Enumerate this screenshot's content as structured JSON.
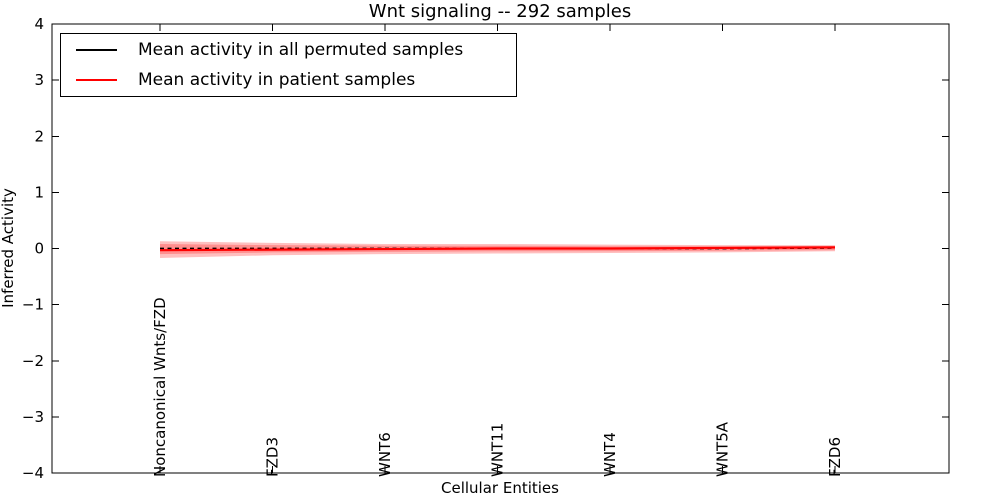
{
  "figure": {
    "title": "Wnt signaling -- 292 samples",
    "xlabel": "Cellular Entities",
    "ylabel": "Inferred Activity"
  },
  "legend": {
    "entries": [
      {
        "label": "Mean activity in all permuted samples",
        "color": "#000000"
      },
      {
        "label": "Mean activity in patient samples",
        "color": "#ff0000"
      }
    ]
  },
  "chart_data": {
    "type": "line",
    "title": "Wnt signaling -- 292 samples",
    "xlabel": "Cellular Entities",
    "ylabel": "Inferred Activity",
    "ylim": [
      -4,
      4
    ],
    "yticks": [
      4,
      3,
      2,
      1,
      0,
      -1,
      -2,
      -3,
      -4
    ],
    "grid": false,
    "legend_position": "upper left",
    "tick_direction": "in",
    "band_color": "#ff0000",
    "band_alpha": 0.25,
    "categories": [
      "Noncanonical Wnts/FZD",
      "FZD3",
      "WNT6",
      "WNT11",
      "WNT4",
      "WNT5A",
      "FZD6"
    ],
    "series": [
      {
        "name": "Mean activity in all permuted samples",
        "color": "#000000",
        "line_style": "dashed",
        "values": [
          0.0,
          0.0,
          0.0,
          0.0,
          0.0,
          0.0,
          0.01
        ],
        "band_upper": [
          0.08,
          0.06,
          0.05,
          0.05,
          0.04,
          0.04,
          0.04
        ],
        "band_lower": [
          -0.1,
          -0.07,
          -0.06,
          -0.05,
          -0.05,
          -0.04,
          -0.03
        ]
      },
      {
        "name": "Mean activity in patient samples",
        "color": "#ff0000",
        "line_style": "solid",
        "values": [
          -0.03,
          -0.02,
          -0.01,
          0.0,
          0.0,
          0.01,
          0.02
        ],
        "band_upper": [
          0.13,
          0.1,
          0.08,
          0.08,
          0.07,
          0.06,
          0.06
        ],
        "band_lower": [
          -0.17,
          -0.12,
          -0.1,
          -0.09,
          -0.08,
          -0.07,
          -0.05
        ]
      }
    ]
  }
}
